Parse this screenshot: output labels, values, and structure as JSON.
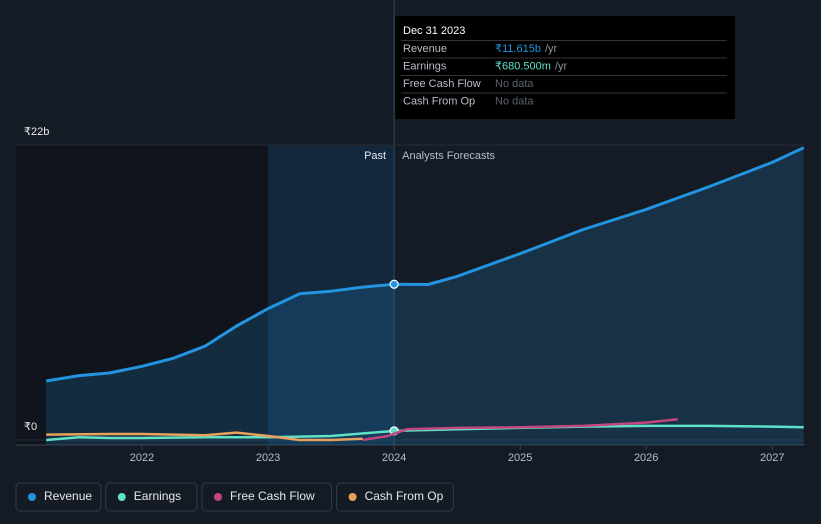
{
  "chart_data": {
    "type": "line",
    "xlim": [
      2021,
      2027.26
    ],
    "xticks": [
      2022,
      2023,
      2024,
      2025,
      2026,
      2027
    ],
    "ylim": [
      0,
      22
    ],
    "yticks": [
      {
        "value": 0,
        "label": "₹0"
      },
      {
        "value": 22,
        "label": "₹22b"
      }
    ],
    "grid": true,
    "past_label": "Past",
    "forecast_label": "Analysts Forecasts",
    "highlight_x": 2024,
    "series": [
      {
        "name": "Revenue",
        "color": "#2394df",
        "x": [
          2021.24,
          2021.5,
          2021.74,
          2022,
          2022.25,
          2022.5,
          2022.75,
          2023,
          2023.25,
          2023.5,
          2023.75,
          2024,
          2024.27,
          2024.5,
          2025,
          2025.5,
          2026,
          2026.5,
          2027,
          2027.25
        ],
        "values": [
          4.4,
          4.8,
          5.0,
          5.5,
          6.1,
          7.0,
          8.5,
          9.8,
          10.9,
          11.1,
          11.4,
          11.615,
          11.6,
          12.2,
          13.9,
          15.7,
          17.2,
          18.9,
          20.7,
          21.8
        ]
      },
      {
        "name": "Earnings",
        "color": "#5fe0c8",
        "x": [
          2021.24,
          2021.5,
          2021.75,
          2022,
          2022.5,
          2023,
          2023.5,
          2024,
          2024.5,
          2025,
          2025.5,
          2026,
          2026.5,
          2027,
          2027.25
        ],
        "values": [
          0.0,
          0.2,
          0.15,
          0.15,
          0.2,
          0.2,
          0.3,
          0.68,
          0.8,
          0.9,
          1.0,
          1.05,
          1.05,
          1.0,
          0.95
        ]
      },
      {
        "name": "Free Cash Flow",
        "color": "#c2467f",
        "x": [
          2023.75,
          2023.95,
          2024.1,
          2024.5,
          2025,
          2025.5,
          2026,
          2026.25
        ],
        "values": [
          0.0,
          0.3,
          0.8,
          0.9,
          0.95,
          1.05,
          1.3,
          1.55
        ]
      },
      {
        "name": "Cash From Op",
        "color": "#e8a15c",
        "x": [
          2021.24,
          2021.75,
          2022,
          2022.5,
          2022.75,
          2023,
          2023.25,
          2023.5,
          2023.75
        ],
        "values": [
          0.4,
          0.45,
          0.45,
          0.35,
          0.55,
          0.3,
          0.0,
          0.0,
          0.1
        ]
      }
    ],
    "tooltip": {
      "date": "Dec 31 2023",
      "rows": [
        {
          "label": "Revenue",
          "value": "₹11.615b",
          "unit": "/yr"
        },
        {
          "label": "Earnings",
          "value": "₹680.500m",
          "unit": "/yr"
        },
        {
          "label": "Free Cash Flow",
          "value": "No data"
        },
        {
          "label": "Cash From Op",
          "value": "No data"
        }
      ]
    }
  }
}
